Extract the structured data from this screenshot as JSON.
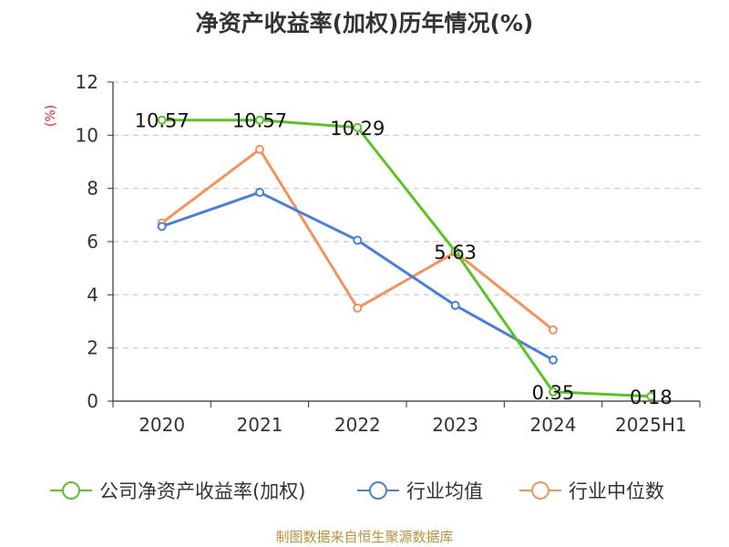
{
  "chart_data": {
    "type": "line",
    "title": "净资产收益率(加权)历年情况(%)",
    "ylabel": "(%)",
    "categories": [
      "2020",
      "2021",
      "2022",
      "2023",
      "2024",
      "2025H1"
    ],
    "ylim": [
      0,
      12
    ],
    "yticks": [
      0,
      2,
      4,
      6,
      8,
      10,
      12
    ],
    "grid": "horizontal-dashed",
    "legend_position": "bottom",
    "series": [
      {
        "name": "公司净资产收益率(加权)",
        "color": "#5cc226",
        "values": [
          10.57,
          10.57,
          10.29,
          5.63,
          0.35,
          0.18
        ],
        "labels": [
          "10.57",
          "10.57",
          "10.29",
          "5.63",
          "0.35",
          "0.18"
        ]
      },
      {
        "name": "行业均值",
        "color": "#4a7fd9",
        "values": [
          6.57,
          7.85,
          6.05,
          3.6,
          1.55,
          null
        ]
      },
      {
        "name": "行业中位数",
        "color": "#f4925c",
        "values": [
          6.7,
          9.47,
          3.5,
          5.6,
          2.68,
          null
        ]
      }
    ]
  },
  "source": "制图数据来自恒生聚源数据库"
}
